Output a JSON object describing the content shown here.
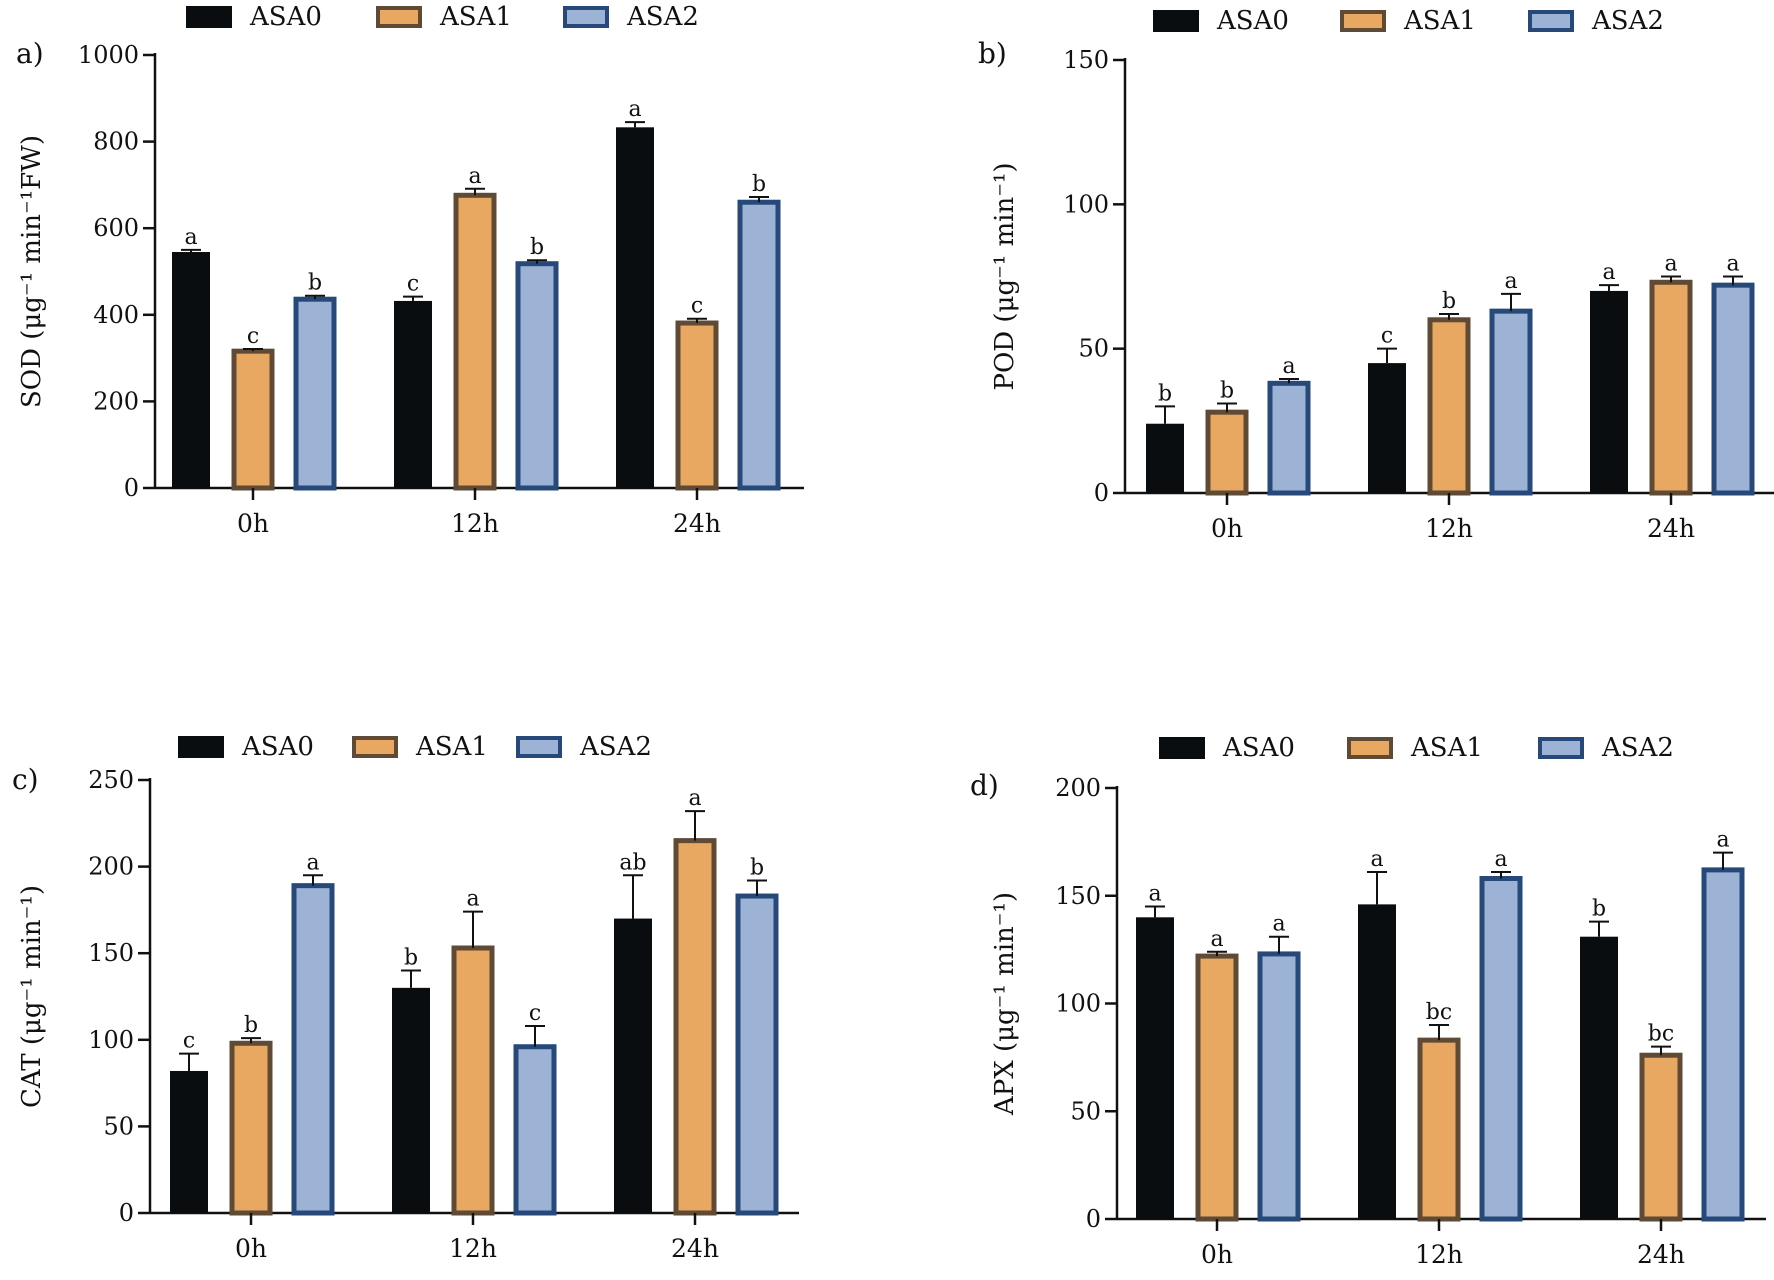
{
  "figure": {
    "series_styles": [
      {
        "name": "ASA0",
        "fill": "#0a0d10",
        "stroke": "#0a0d10"
      },
      {
        "name": "ASA1",
        "fill": "#e8a861",
        "stroke": "#5e4a35"
      },
      {
        "name": "ASA2",
        "fill": "#9db3d6",
        "stroke": "#26497a"
      }
    ],
    "axis_color": "#111111",
    "errorbar_color": "#111111"
  },
  "chart_data": [
    {
      "id": "a",
      "panel_label": "a)",
      "type": "bar",
      "title": "",
      "xlabel": "",
      "ylabel": "SOD (μg⁻¹ min⁻¹FW)",
      "ylim": [
        0,
        1000
      ],
      "yticks": [
        0,
        200,
        400,
        600,
        800,
        1000
      ],
      "ytick_labels": [
        "0",
        "200",
        "400",
        "600",
        "800",
        "1000"
      ],
      "categories": [
        "0h",
        "12h",
        "24h"
      ],
      "legend": [
        "ASA0",
        "ASA1",
        "ASA2"
      ],
      "legend_position": "top",
      "series": [
        {
          "name": "ASA0",
          "values": [
            545,
            432,
            833
          ],
          "errors": [
            5,
            10,
            12
          ],
          "letters": [
            "a",
            "c",
            "a"
          ]
        },
        {
          "name": "ASA1",
          "values": [
            316,
            676,
            381
          ],
          "errors": [
            5,
            15,
            10
          ],
          "letters": [
            "c",
            "a",
            "c"
          ]
        },
        {
          "name": "ASA2",
          "values": [
            436,
            518,
            660
          ],
          "errors": [
            8,
            8,
            12
          ],
          "letters": [
            "b",
            "b",
            "b"
          ]
        }
      ]
    },
    {
      "id": "b",
      "panel_label": "b)",
      "type": "bar",
      "title": "",
      "xlabel": "",
      "ylabel": "POD (μg⁻¹ min⁻¹)",
      "ylim": [
        0,
        150
      ],
      "yticks": [
        0,
        50,
        100,
        150
      ],
      "ytick_labels": [
        "0",
        "50",
        "100",
        "150"
      ],
      "categories": [
        "0h",
        "12h",
        "24h"
      ],
      "legend": [
        "ASA0",
        "ASA1",
        "ASA2"
      ],
      "legend_position": "top",
      "series": [
        {
          "name": "ASA0",
          "values": [
            24,
            45,
            70
          ],
          "errors": [
            6,
            5,
            2
          ],
          "letters": [
            "b",
            "c",
            "a"
          ]
        },
        {
          "name": "ASA1",
          "values": [
            28,
            60,
            73
          ],
          "errors": [
            3,
            2,
            2
          ],
          "letters": [
            "b",
            "b",
            "a"
          ]
        },
        {
          "name": "ASA2",
          "values": [
            38,
            63,
            72
          ],
          "errors": [
            1.5,
            6,
            3
          ],
          "letters": [
            "a",
            "a",
            "a"
          ]
        }
      ]
    },
    {
      "id": "c",
      "panel_label": "c)",
      "type": "bar",
      "title": "",
      "xlabel": "",
      "ylabel": "CAT (μg⁻¹ min⁻¹)",
      "ylim": [
        0,
        250
      ],
      "yticks": [
        0,
        50,
        100,
        150,
        200,
        250
      ],
      "ytick_labels": [
        "0",
        "50",
        "100",
        "150",
        "200",
        "250"
      ],
      "categories": [
        "0h",
        "12h",
        "24h"
      ],
      "legend": [
        "ASA0",
        "ASA1",
        "ASA2"
      ],
      "legend_position": "top",
      "series": [
        {
          "name": "ASA0",
          "values": [
            82,
            130,
            170
          ],
          "errors": [
            10,
            10,
            25
          ],
          "letters": [
            "c",
            "b",
            "ab"
          ]
        },
        {
          "name": "ASA1",
          "values": [
            98,
            153,
            215
          ],
          "errors": [
            3,
            21,
            17
          ],
          "letters": [
            "b",
            "a",
            "a"
          ]
        },
        {
          "name": "ASA2",
          "values": [
            189,
            96,
            183
          ],
          "errors": [
            6,
            12,
            9
          ],
          "letters": [
            "a",
            "c",
            "b"
          ]
        }
      ]
    },
    {
      "id": "d",
      "panel_label": "d)",
      "type": "bar",
      "title": "",
      "xlabel": "",
      "ylabel": "APX (μg⁻¹ min⁻¹)",
      "ylim": [
        0,
        200
      ],
      "yticks": [
        0,
        50,
        100,
        150,
        200
      ],
      "ytick_labels": [
        "0",
        "50",
        "100",
        "150",
        "200"
      ],
      "categories": [
        "0h",
        "12h",
        "24h"
      ],
      "legend": [
        "ASA0",
        "ASA1",
        "ASA2"
      ],
      "legend_position": "top",
      "series": [
        {
          "name": "ASA0",
          "values": [
            140,
            146,
            131
          ],
          "errors": [
            5,
            15,
            7
          ],
          "letters": [
            "a",
            "a",
            "b"
          ]
        },
        {
          "name": "ASA1",
          "values": [
            122,
            83,
            76
          ],
          "errors": [
            2,
            7,
            4
          ],
          "letters": [
            "a",
            "bc",
            "bc"
          ]
        },
        {
          "name": "ASA2",
          "values": [
            123,
            158,
            162
          ],
          "errors": [
            8,
            3,
            8
          ],
          "letters": [
            "a",
            "a",
            "a"
          ]
        }
      ]
    }
  ]
}
